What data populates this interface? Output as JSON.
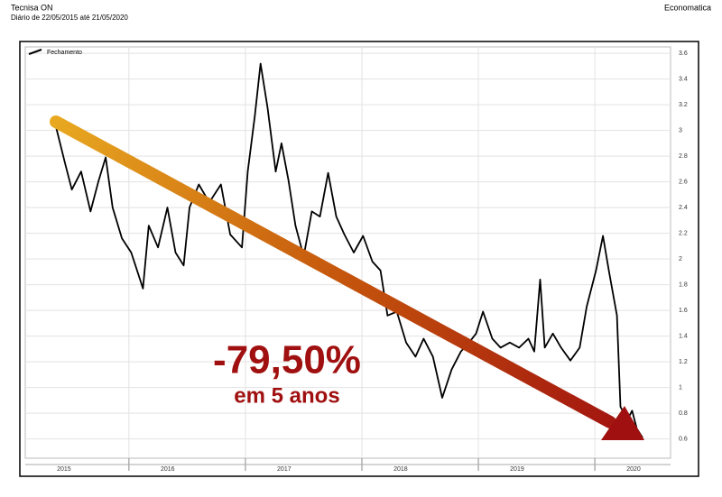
{
  "header": {
    "title": "Tecnisa ON",
    "subtitle": "Diário de 22/05/2015 até 21/05/2020",
    "source": "Economatica"
  },
  "chart_data": {
    "type": "line",
    "x": [
      2015.37,
      2015.45,
      2015.51,
      2015.59,
      2015.67,
      2015.74,
      2015.8,
      2015.86,
      2015.94,
      2016.02,
      2016.07,
      2016.12,
      2016.17,
      2016.25,
      2016.33,
      2016.4,
      2016.47,
      2016.52,
      2016.6,
      2016.69,
      2016.79,
      2016.87,
      2016.97,
      2017.02,
      2017.08,
      2017.13,
      2017.19,
      2017.26,
      2017.31,
      2017.37,
      2017.43,
      2017.5,
      2017.57,
      2017.64,
      2017.71,
      2017.78,
      2017.85,
      2017.93,
      2018.01,
      2018.09,
      2018.16,
      2018.22,
      2018.3,
      2018.38,
      2018.46,
      2018.53,
      2018.61,
      2018.69,
      2018.77,
      2018.85,
      2018.92,
      2018.98,
      2019.04,
      2019.12,
      2019.19,
      2019.27,
      2019.35,
      2019.43,
      2019.48,
      2019.53,
      2019.57,
      2019.64,
      2019.71,
      2019.79,
      2019.87,
      2019.93,
      2020.01,
      2020.07,
      2020.12,
      2020.19,
      2020.22,
      2020.28,
      2020.32,
      2020.36,
      2020.41
    ],
    "series": [
      {
        "name": "Fechamento",
        "color": "#000000",
        "values": [
          3.04,
          2.75,
          2.54,
          2.68,
          2.37,
          2.61,
          2.79,
          2.4,
          2.16,
          2.05,
          1.91,
          1.77,
          2.26,
          2.09,
          2.4,
          2.05,
          1.95,
          2.4,
          2.58,
          2.44,
          2.58,
          2.19,
          2.09,
          2.68,
          3.11,
          3.52,
          3.18,
          2.68,
          2.9,
          2.61,
          2.26,
          2.02,
          2.37,
          2.33,
          2.67,
          2.33,
          2.19,
          2.05,
          2.18,
          1.98,
          1.91,
          1.56,
          1.59,
          1.35,
          1.24,
          1.38,
          1.24,
          0.92,
          1.14,
          1.28,
          1.35,
          1.42,
          1.59,
          1.38,
          1.31,
          1.35,
          1.31,
          1.38,
          1.28,
          1.84,
          1.31,
          1.42,
          1.31,
          1.21,
          1.31,
          1.63,
          1.91,
          2.18,
          1.91,
          1.56,
          0.85,
          0.75,
          0.82,
          0.68,
          0.61
        ]
      }
    ],
    "xlim": [
      2015.11,
      2020.65
    ],
    "xticks": [
      2015,
      2016,
      2017,
      2018,
      2019,
      2020
    ],
    "ylim": [
      0.45,
      3.65
    ],
    "yticks": [
      0.6,
      0.8,
      1,
      1.2,
      1.4,
      1.6,
      1.8,
      2,
      2.2,
      2.4,
      2.6,
      2.8,
      3,
      3.2,
      3.4,
      3.6
    ],
    "grid": true,
    "annotations": [
      "-79,50%",
      "em 5 anos"
    ]
  }
}
